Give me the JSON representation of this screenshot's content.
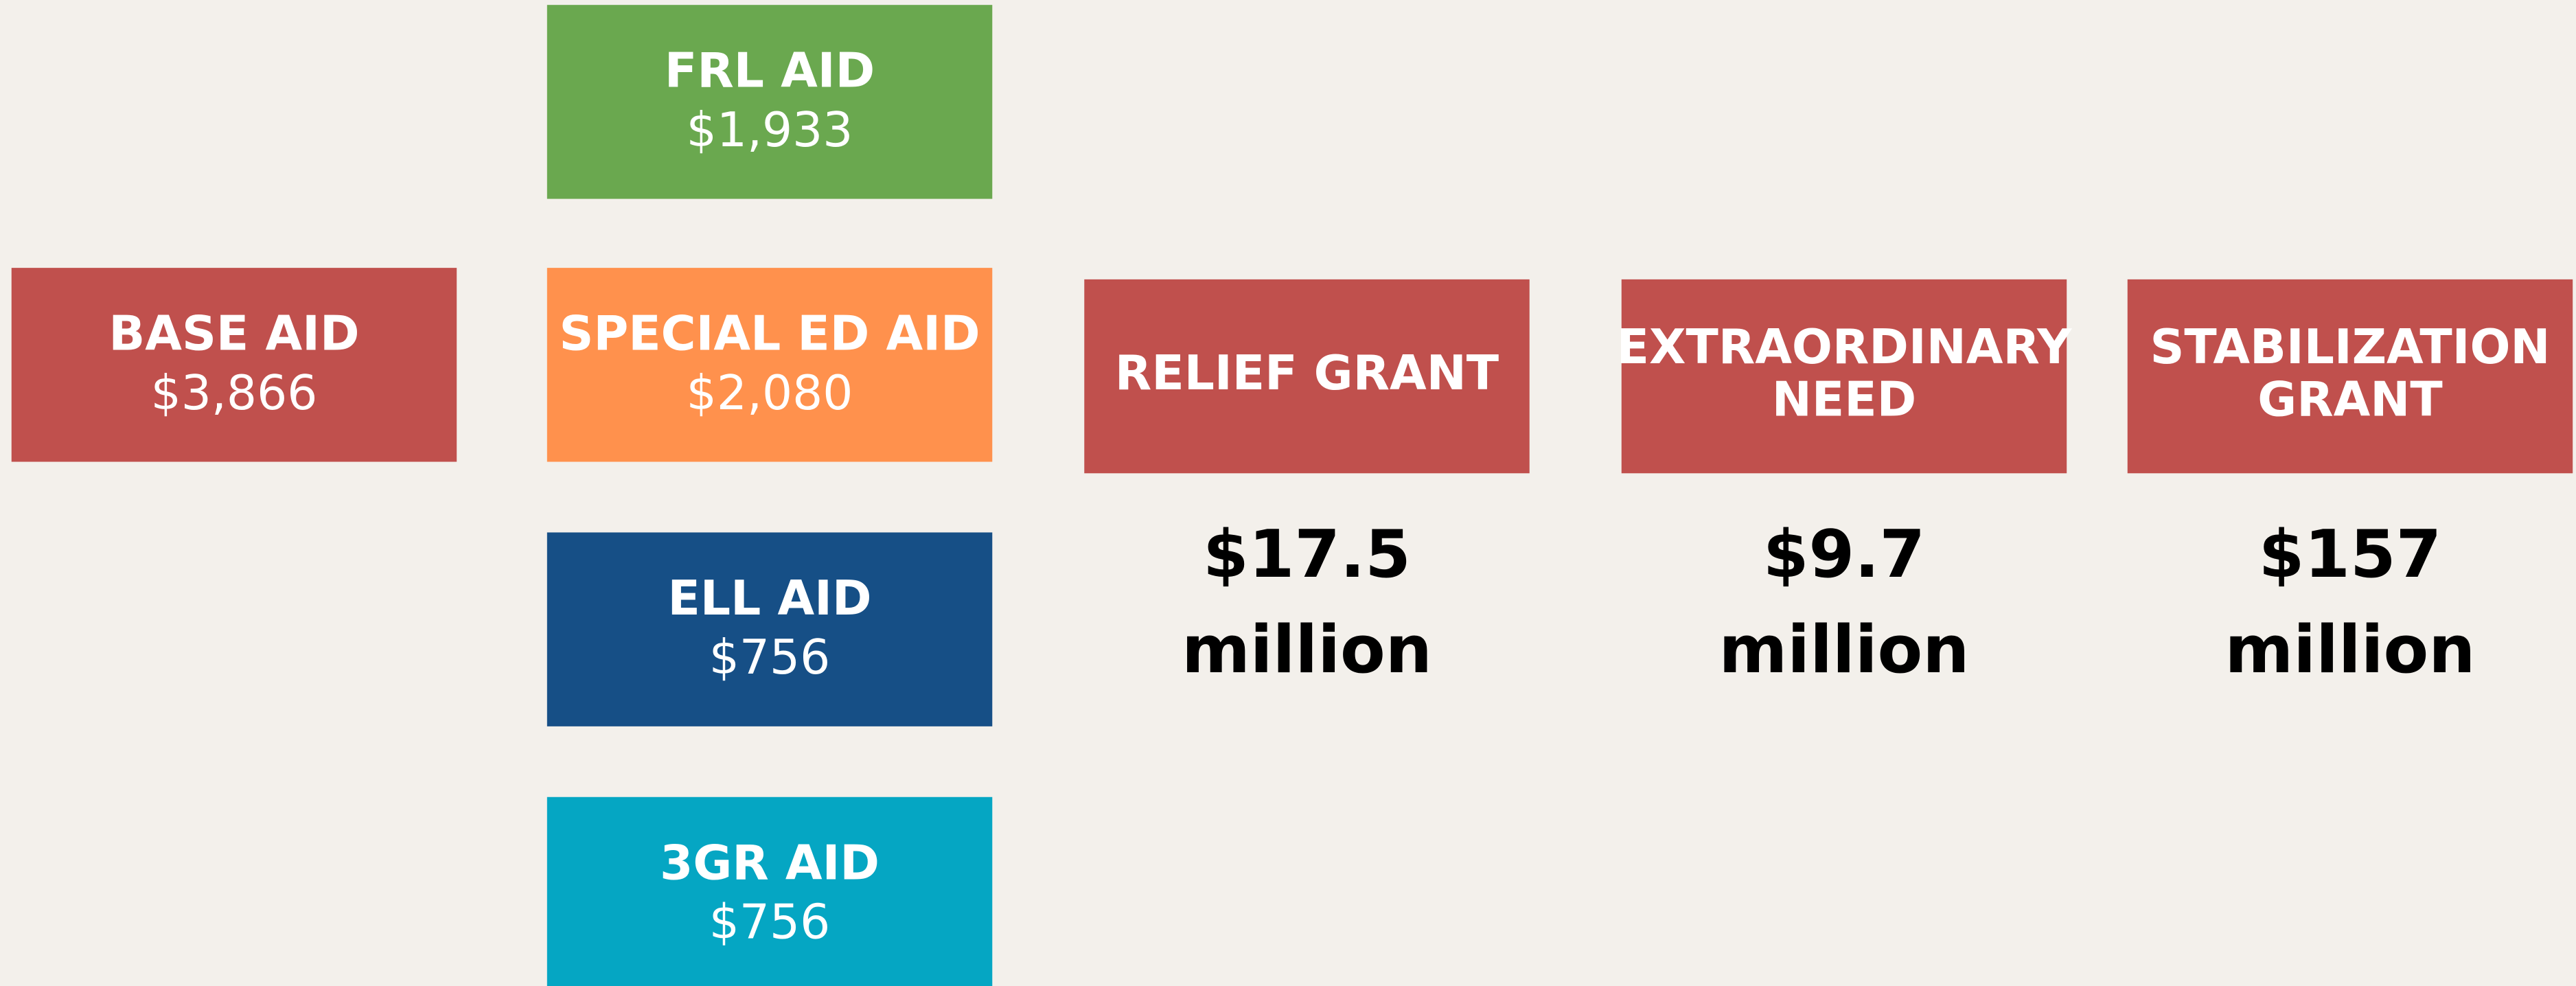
{
  "aid_boxes": [
    {
      "label_lines": [
        "BASE AID"
      ],
      "amount": "$3,866",
      "color": "#c0504d"
    },
    {
      "label_lines": [
        "FRL AID"
      ],
      "amount": "$1,933",
      "color": "#6aa84f"
    },
    {
      "label_lines": [
        "SPECIAL ED AID"
      ],
      "amount": "$2,080",
      "color": "#ff914d"
    },
    {
      "label_lines": [
        "ELL AID"
      ],
      "amount": "$756",
      "color": "#164f86"
    },
    {
      "label_lines": [
        "3GR AID"
      ],
      "amount": "$756",
      "color": "#05a6c3"
    }
  ],
  "grants": [
    {
      "label_lines": [
        "RELIEF GRANT"
      ],
      "amount_lines": [
        "$17.5",
        "million"
      ],
      "color": "#c0504d"
    },
    {
      "label_lines": [
        "EXTRAORDINARY",
        "NEED"
      ],
      "amount_lines": [
        "$9.7",
        "million"
      ],
      "color": "#c0504d"
    },
    {
      "label_lines": [
        "STABILIZATION",
        "GRANT"
      ],
      "amount_lines": [
        "$157",
        "million"
      ],
      "color": "#c0504d"
    }
  ]
}
